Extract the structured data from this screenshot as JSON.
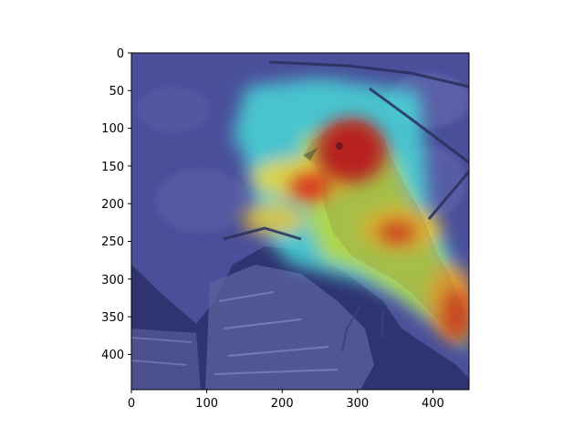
{
  "figure": {
    "description_free": true,
    "x_ticks": [
      "0",
      "100",
      "200",
      "300",
      "400"
    ],
    "y_ticks": [
      "0",
      "50",
      "100",
      "150",
      "200",
      "250",
      "300",
      "350",
      "400"
    ],
    "image_extent": {
      "x": [
        0,
        448
      ],
      "y": [
        448,
        0
      ]
    }
  },
  "colors": {
    "background_overlay": "#3a3f8f",
    "frame": "#000000"
  }
}
